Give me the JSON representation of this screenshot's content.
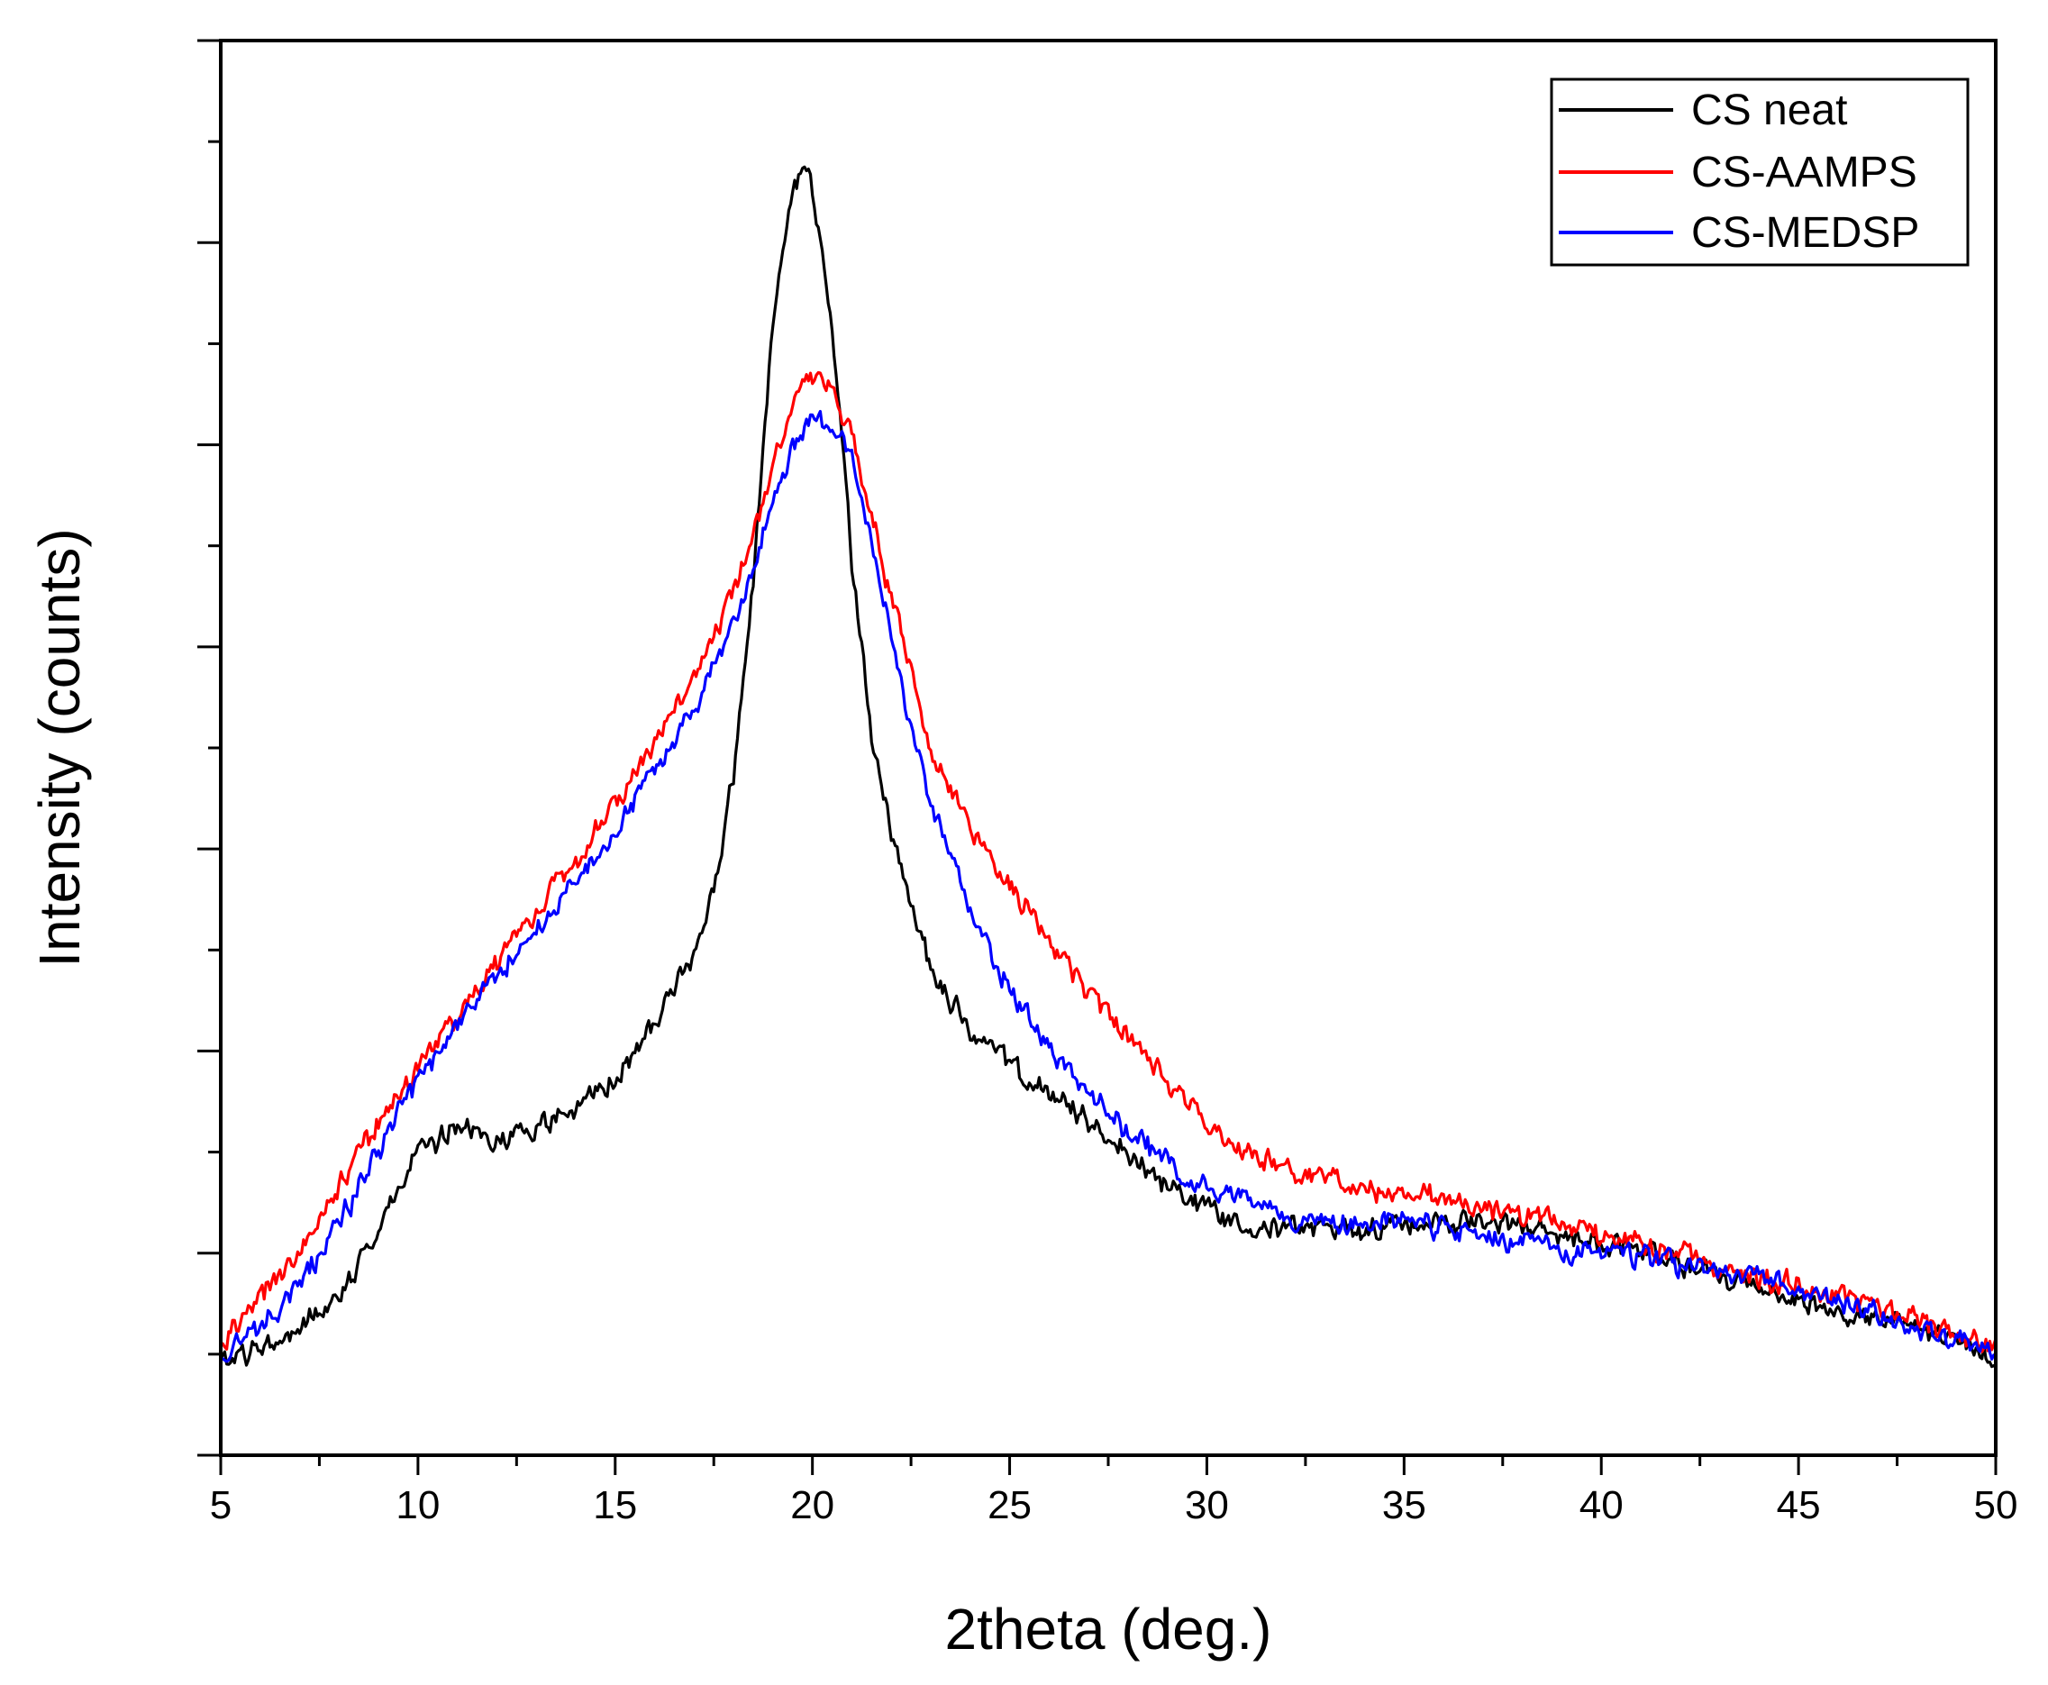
{
  "chart_data": {
    "type": "line",
    "title": "",
    "xlabel": "2theta (deg.)",
    "ylabel": "Intensity (counts)",
    "xlim": [
      5,
      50
    ],
    "ylim": [
      0,
      100
    ],
    "x_ticks": [
      "5",
      "10",
      "15",
      "20",
      "25",
      "30",
      "35",
      "40",
      "45",
      "50"
    ],
    "y_tick_labels_shown": false,
    "grid": false,
    "legend_position": "top-right",
    "series": [
      {
        "name": "CS neat",
        "color": "#000000",
        "x": [
          5,
          6,
          7,
          8,
          9,
          10,
          11,
          12,
          13,
          14,
          15,
          16,
          17,
          17.5,
          18,
          18.5,
          19,
          19.5,
          19.8,
          20,
          20.3,
          20.7,
          21,
          21.5,
          22,
          22.5,
          23,
          24,
          25,
          26,
          27,
          28,
          29,
          30,
          31,
          32,
          33,
          34,
          35,
          36,
          37,
          38,
          39,
          40,
          41,
          42,
          43,
          44,
          45,
          46,
          47,
          48,
          49,
          50
        ],
        "y": [
          6.5,
          7.5,
          9,
          11.5,
          16,
          21.5,
          23,
          22.5,
          23,
          24.5,
          26.5,
          30.5,
          35.5,
          40,
          48,
          62,
          80,
          89,
          91,
          89,
          84,
          74,
          63,
          51,
          44,
          39,
          34.5,
          30,
          27.5,
          25.5,
          23.5,
          21.5,
          19,
          17.5,
          16.5,
          16,
          16,
          16,
          16.5,
          16.5,
          16.5,
          16,
          15.5,
          15,
          14.5,
          13.5,
          12.5,
          12,
          11,
          10,
          9.5,
          9,
          8,
          7
        ]
      },
      {
        "name": "CS-AAMPS",
        "color": "#ff0000",
        "x": [
          5,
          6,
          7,
          8,
          9,
          10,
          11,
          12,
          13,
          14,
          15,
          16,
          17,
          18,
          18.5,
          19,
          19.5,
          20,
          20.5,
          21,
          21.5,
          22,
          22.5,
          23,
          24,
          25,
          26,
          27,
          28,
          29,
          30,
          31,
          32,
          33,
          34,
          35,
          36,
          37,
          38,
          39,
          40,
          41,
          42,
          43,
          44,
          45,
          46,
          47,
          48,
          49,
          50
        ],
        "y": [
          8,
          11,
          14.5,
          19,
          23.5,
          27.5,
          31,
          35,
          38.5,
          42,
          46,
          50.5,
          55,
          61,
          65,
          70,
          74.5,
          76,
          75.5,
          72,
          66.5,
          60.5,
          55.5,
          50,
          44.5,
          40.5,
          36.5,
          32.5,
          29.5,
          26.5,
          23.5,
          21.5,
          20.5,
          19.5,
          19,
          18.5,
          18,
          17.5,
          17,
          16.5,
          15.5,
          15,
          14.5,
          13.5,
          12.5,
          12,
          11.5,
          10.5,
          9.5,
          8.5,
          7.5
        ]
      },
      {
        "name": "CS-MEDSP",
        "color": "#0000ff",
        "x": [
          5,
          6,
          7,
          8,
          9,
          10,
          11,
          12,
          13,
          14,
          15,
          16,
          17,
          18,
          18.5,
          19,
          19.5,
          20,
          20.5,
          21,
          21.5,
          22,
          22.5,
          23,
          24,
          25,
          26,
          27,
          28,
          29,
          30,
          31,
          32,
          33,
          34,
          35,
          36,
          37,
          38,
          39,
          40,
          41,
          42,
          43,
          44,
          45,
          46,
          47,
          48,
          49,
          50
        ],
        "y": [
          7,
          9,
          12,
          16.5,
          21.5,
          26.5,
          30.5,
          34,
          37,
          40.5,
          44,
          48.5,
          53,
          58.5,
          62.5,
          67.5,
          71.5,
          73.5,
          73,
          70.5,
          64.5,
          58,
          51.5,
          46,
          38.5,
          33,
          29,
          25.5,
          23,
          20.5,
          19,
          18,
          17,
          16.5,
          16.5,
          16.5,
          16,
          15.5,
          15,
          14.5,
          14.5,
          14,
          13.5,
          13,
          12.5,
          11.5,
          11,
          10,
          9,
          8,
          7
        ]
      }
    ]
  }
}
